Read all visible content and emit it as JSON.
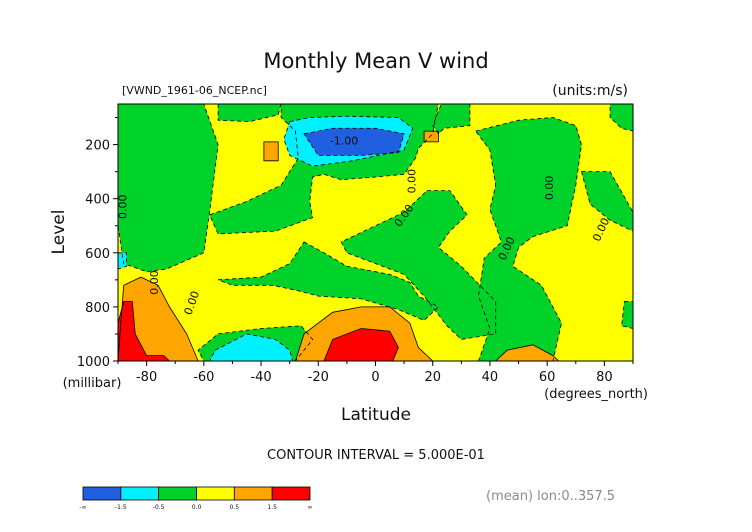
{
  "chart_data": {
    "type": "heatmap",
    "title": "Monthly Mean V wind",
    "subtitle_left": "[VWND_1961-06_NCEP.nc]",
    "subtitle_right": "(units:m/s)",
    "xlabel": "Latitude",
    "x_units": "(degrees_north)",
    "ylabel": "Level",
    "y_units": "(millibar)",
    "xlim": [
      -90,
      90
    ],
    "ylim": [
      1000,
      50
    ],
    "x_ticks": [
      -80,
      -60,
      -40,
      -20,
      0,
      20,
      40,
      60,
      80
    ],
    "y_ticks": [
      200,
      400,
      600,
      800,
      1000
    ],
    "contour_interval_text": "CONTOUR INTERVAL = 5.000E-01",
    "footer_note": "(mean) lon:0..357.5",
    "colorbar": {
      "bins": [
        {
          "lo": "-∞",
          "hi": "-1.5",
          "color": "#1f5fe0"
        },
        {
          "lo": "-1.5",
          "hi": "-0.5",
          "color": "#00f0ff"
        },
        {
          "lo": "-0.5",
          "hi": "0.0",
          "color": "#00d22a"
        },
        {
          "lo": "0.0",
          "hi": "0.5",
          "color": "#ffff00"
        },
        {
          "lo": "0.5",
          "hi": "1.5",
          "color": "#ffa500"
        },
        {
          "lo": "1.5",
          "hi": "∞",
          "color": "#ff0000"
        }
      ],
      "tick_labels": [
        "-∞",
        "-1.5",
        "-0.5",
        "0.0",
        "0.5",
        "1.5",
        "∞"
      ]
    },
    "contour_labels": [
      {
        "text": "0.00",
        "lat": -87,
        "level": 430,
        "rot": -90
      },
      {
        "text": "0.00",
        "lat": -76,
        "level": 710,
        "rot": -90
      },
      {
        "text": "0.00",
        "lat": -63,
        "level": 790,
        "rot": -70
      },
      {
        "text": "-1.00",
        "lat": -11,
        "level": 200,
        "rot": 0
      },
      {
        "text": "0.00",
        "lat": 14,
        "level": 335,
        "rot": -90
      },
      {
        "text": "0.00",
        "lat": 11,
        "level": 470,
        "rot": -55
      },
      {
        "text": "0.00",
        "lat": 47,
        "level": 590,
        "rot": -65
      },
      {
        "text": "0.00",
        "lat": 62,
        "level": 360,
        "rot": -90
      },
      {
        "text": "0.00",
        "lat": 80,
        "level": 520,
        "rot": -65
      }
    ],
    "regions": [
      {
        "value": 0.2,
        "level": "yellow",
        "poly": [
          [
            -90,
            50
          ],
          [
            90,
            50
          ],
          [
            90,
            1000
          ],
          [
            -90,
            1000
          ]
        ]
      },
      {
        "value": -0.2,
        "level": "green",
        "poly": [
          [
            -90,
            50
          ],
          [
            -60,
            50
          ],
          [
            -55,
            200
          ],
          [
            -58,
            450
          ],
          [
            -60,
            600
          ],
          [
            -73,
            660
          ],
          [
            -80,
            670
          ],
          [
            -88,
            640
          ],
          [
            -90,
            500
          ]
        ]
      },
      {
        "value": -0.2,
        "level": "green",
        "poly": [
          [
            -55,
            50
          ],
          [
            -33,
            50
          ],
          [
            -34,
            90
          ],
          [
            -44,
            115
          ],
          [
            -55,
            110
          ]
        ]
      },
      {
        "value": -0.2,
        "level": "green",
        "poly": [
          [
            -33,
            50
          ],
          [
            22,
            50
          ],
          [
            20,
            160
          ],
          [
            15,
            215
          ],
          [
            14,
            250
          ],
          [
            10,
            310
          ],
          [
            0,
            320
          ],
          [
            -12,
            330
          ],
          [
            -18,
            310
          ],
          [
            -22,
            320
          ],
          [
            -23,
            410
          ],
          [
            -22,
            470
          ],
          [
            -35,
            520
          ],
          [
            -55,
            530
          ],
          [
            -58,
            460
          ],
          [
            -45,
            410
          ],
          [
            -33,
            350
          ],
          [
            -27,
            250
          ],
          [
            -28,
            150
          ],
          [
            -33,
            100
          ]
        ]
      },
      {
        "value": -0.2,
        "level": "green",
        "poly": [
          [
            -25,
            560
          ],
          [
            -18,
            600
          ],
          [
            -10,
            650
          ],
          [
            5,
            680
          ],
          [
            12,
            710
          ],
          [
            15,
            760
          ],
          [
            22,
            800
          ],
          [
            17,
            850
          ],
          [
            8,
            810
          ],
          [
            -5,
            770
          ],
          [
            -20,
            760
          ],
          [
            -27,
            740
          ],
          [
            -36,
            720
          ],
          [
            -50,
            720
          ],
          [
            -55,
            700
          ],
          [
            -40,
            690
          ],
          [
            -30,
            640
          ]
        ]
      },
      {
        "value": -0.2,
        "level": "green",
        "poly": [
          [
            18,
            370
          ],
          [
            26,
            370
          ],
          [
            32,
            460
          ],
          [
            26,
            520
          ],
          [
            22,
            580
          ],
          [
            30,
            650
          ],
          [
            42,
            780
          ],
          [
            42,
            900
          ],
          [
            30,
            920
          ],
          [
            25,
            870
          ],
          [
            17,
            760
          ],
          [
            10,
            680
          ],
          [
            0,
            640
          ],
          [
            -10,
            600
          ],
          [
            -12,
            560
          ],
          [
            0,
            500
          ],
          [
            10,
            450
          ]
        ]
      },
      {
        "value": -0.2,
        "level": "green",
        "poly": [
          [
            23,
            50
          ],
          [
            33,
            50
          ],
          [
            33,
            130
          ],
          [
            24,
            140
          ],
          [
            22,
            160
          ],
          [
            20,
            130
          ]
        ]
      },
      {
        "value": -0.2,
        "level": "green",
        "poly": [
          [
            35,
            150
          ],
          [
            50,
            110
          ],
          [
            62,
            100
          ],
          [
            70,
            130
          ],
          [
            72,
            200
          ],
          [
            70,
            350
          ],
          [
            67,
            500
          ],
          [
            55,
            540
          ],
          [
            50,
            580
          ],
          [
            48,
            650
          ],
          [
            58,
            720
          ],
          [
            65,
            860
          ],
          [
            62,
            1000
          ],
          [
            36,
            1000
          ],
          [
            40,
            880
          ],
          [
            36,
            760
          ],
          [
            38,
            620
          ],
          [
            44,
            560
          ],
          [
            40,
            440
          ],
          [
            42,
            350
          ],
          [
            40,
            220
          ]
        ]
      },
      {
        "value": -0.2,
        "level": "green",
        "poly": [
          [
            82,
            50
          ],
          [
            90,
            50
          ],
          [
            90,
            150
          ],
          [
            86,
            140
          ],
          [
            82,
            100
          ]
        ]
      },
      {
        "value": -0.2,
        "level": "green",
        "poly": [
          [
            72,
            300
          ],
          [
            82,
            300
          ],
          [
            90,
            450
          ],
          [
            90,
            520
          ],
          [
            82,
            480
          ],
          [
            75,
            420
          ]
        ]
      },
      {
        "value": -0.2,
        "level": "green",
        "poly": [
          [
            87,
            780
          ],
          [
            90,
            780
          ],
          [
            90,
            880
          ],
          [
            86,
            870
          ]
        ]
      },
      {
        "value": -0.2,
        "level": "green",
        "poly": [
          [
            -55,
            900
          ],
          [
            -40,
            880
          ],
          [
            -26,
            870
          ],
          [
            -22,
            920
          ],
          [
            -28,
            1000
          ],
          [
            -60,
            1000
          ],
          [
            -62,
            960
          ]
        ]
      },
      {
        "value": -1.0,
        "level": "cyan",
        "poly": [
          [
            -30,
            115
          ],
          [
            -23,
            100
          ],
          [
            -10,
            95
          ],
          [
            8,
            100
          ],
          [
            13,
            140
          ],
          [
            10,
            220
          ],
          [
            -8,
            260
          ],
          [
            -22,
            280
          ],
          [
            -30,
            240
          ],
          [
            -32,
            180
          ]
        ]
      },
      {
        "value": -1.0,
        "level": "cyan",
        "poly": [
          [
            -56,
            960
          ],
          [
            -45,
            900
          ],
          [
            -35,
            920
          ],
          [
            -30,
            960
          ],
          [
            -29,
            1000
          ],
          [
            -58,
            1000
          ]
        ]
      },
      {
        "value": -1.0,
        "level": "cyan",
        "poly": [
          [
            -90,
            600
          ],
          [
            -87,
            600
          ],
          [
            -87,
            650
          ],
          [
            -90,
            660
          ]
        ]
      },
      {
        "value": -2.0,
        "level": "blue",
        "poly": [
          [
            -25,
            160
          ],
          [
            -15,
            140
          ],
          [
            0,
            140
          ],
          [
            10,
            160
          ],
          [
            8,
            230
          ],
          [
            -5,
            240
          ],
          [
            -20,
            240
          ]
        ]
      },
      {
        "value": 1.0,
        "level": "orange",
        "poly": [
          [
            -88,
            720
          ],
          [
            -82,
            690
          ],
          [
            -76,
            720
          ],
          [
            -72,
            800
          ],
          [
            -66,
            900
          ],
          [
            -62,
            1000
          ],
          [
            -90,
            1000
          ]
        ]
      },
      {
        "value": 1.0,
        "level": "orange",
        "poly": [
          [
            -28,
            1000
          ],
          [
            -25,
            900
          ],
          [
            -15,
            820
          ],
          [
            -5,
            800
          ],
          [
            5,
            800
          ],
          [
            12,
            860
          ],
          [
            15,
            950
          ],
          [
            20,
            1000
          ]
        ]
      },
      {
        "value": 1.0,
        "level": "orange",
        "poly": [
          [
            42,
            1000
          ],
          [
            46,
            960
          ],
          [
            55,
            940
          ],
          [
            62,
            980
          ],
          [
            64,
            1000
          ]
        ]
      },
      {
        "value": 1.0,
        "level": "orange",
        "poly": [
          [
            -39,
            190
          ],
          [
            -34,
            190
          ],
          [
            -34,
            260
          ],
          [
            -39,
            260
          ]
        ]
      },
      {
        "value": 1.0,
        "level": "orange",
        "poly": [
          [
            17,
            150
          ],
          [
            22,
            150
          ],
          [
            22,
            190
          ],
          [
            17,
            190
          ]
        ]
      },
      {
        "value": 2.0,
        "level": "red",
        "poly": [
          [
            -88,
            780
          ],
          [
            -85,
            780
          ],
          [
            -84,
            900
          ],
          [
            -80,
            980
          ],
          [
            -74,
            980
          ],
          [
            -72,
            1000
          ],
          [
            -90,
            1000
          ],
          [
            -90,
            860
          ]
        ]
      },
      {
        "value": 2.0,
        "level": "red",
        "poly": [
          [
            -18,
            1000
          ],
          [
            -15,
            920
          ],
          [
            -5,
            880
          ],
          [
            5,
            890
          ],
          [
            8,
            950
          ],
          [
            6,
            1000
          ]
        ]
      }
    ]
  }
}
